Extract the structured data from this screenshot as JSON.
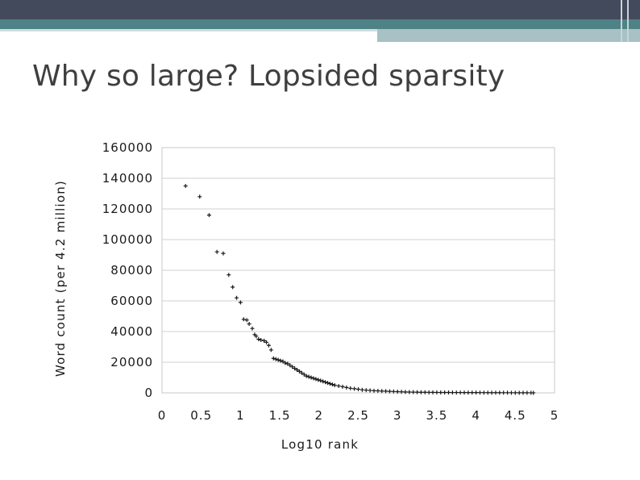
{
  "slide": {
    "title": "Why so large? Lopsided sparsity"
  },
  "colors": {
    "top_bar": "#434a5b",
    "teal_bar": "#4e8286",
    "light_bar": "#a7c1c4",
    "grid": "#d0d0d0",
    "marker": "#1a1a1a"
  },
  "chart_data": {
    "type": "scatter",
    "xlabel": "Log10 rank",
    "ylabel": "Word count (per 4.2 million)",
    "xlim": [
      0,
      5
    ],
    "ylim": [
      0,
      160000
    ],
    "x_ticks": [
      "0",
      "0.5",
      "1",
      "1.5",
      "2",
      "2.5",
      "3",
      "3.5",
      "4",
      "4.5",
      "5"
    ],
    "y_ticks": [
      "0",
      "20000",
      "40000",
      "60000",
      "80000",
      "100000",
      "120000",
      "140000",
      "160000"
    ],
    "grid": "horizontal",
    "legend": "none",
    "marker": "plus",
    "points": [
      [
        0.3,
        135000
      ],
      [
        0.48,
        128000
      ],
      [
        0.6,
        116000
      ],
      [
        0.7,
        92000
      ],
      [
        0.78,
        91000
      ],
      [
        0.85,
        77000
      ],
      [
        0.9,
        69000
      ],
      [
        0.95,
        62000
      ],
      [
        1.0,
        59000
      ],
      [
        1.04,
        48000
      ],
      [
        1.08,
        47500
      ],
      [
        1.11,
        45000
      ],
      [
        1.15,
        42000
      ],
      [
        1.18,
        38000
      ],
      [
        1.2,
        37000
      ],
      [
        1.23,
        35000
      ],
      [
        1.26,
        34500
      ],
      [
        1.3,
        34000
      ],
      [
        1.33,
        33000
      ],
      [
        1.36,
        31000
      ],
      [
        1.39,
        28000
      ],
      [
        1.42,
        22500
      ],
      [
        1.45,
        22000
      ],
      [
        1.48,
        21500
      ],
      [
        1.51,
        21000
      ],
      [
        1.54,
        20500
      ],
      [
        1.57,
        19500
      ],
      [
        1.6,
        19000
      ],
      [
        1.63,
        18000
      ],
      [
        1.66,
        17000
      ],
      [
        1.69,
        16000
      ],
      [
        1.72,
        15000
      ],
      [
        1.75,
        14000
      ],
      [
        1.78,
        13000
      ],
      [
        1.81,
        12000
      ],
      [
        1.84,
        11000
      ],
      [
        1.87,
        10500
      ],
      [
        1.9,
        10000
      ],
      [
        1.93,
        9500
      ],
      [
        1.96,
        9000
      ],
      [
        1.99,
        8500
      ],
      [
        2.02,
        8000
      ],
      [
        2.05,
        7500
      ],
      [
        2.08,
        7000
      ],
      [
        2.11,
        6500
      ],
      [
        2.14,
        6000
      ],
      [
        2.17,
        5500
      ],
      [
        2.2,
        5000
      ],
      [
        2.25,
        4500
      ],
      [
        2.3,
        4000
      ],
      [
        2.35,
        3500
      ],
      [
        2.4,
        3000
      ],
      [
        2.45,
        2700
      ],
      [
        2.5,
        2400
      ],
      [
        2.55,
        2000
      ],
      [
        2.6,
        1800
      ],
      [
        2.65,
        1600
      ],
      [
        2.7,
        1400
      ],
      [
        2.75,
        1300
      ],
      [
        2.8,
        1200
      ],
      [
        2.85,
        1100
      ],
      [
        2.9,
        1000
      ],
      [
        2.95,
        900
      ],
      [
        3.0,
        800
      ],
      [
        3.05,
        700
      ],
      [
        3.1,
        600
      ],
      [
        3.15,
        550
      ],
      [
        3.2,
        500
      ],
      [
        3.25,
        450
      ],
      [
        3.3,
        400
      ],
      [
        3.35,
        380
      ],
      [
        3.4,
        350
      ],
      [
        3.45,
        320
      ],
      [
        3.5,
        300
      ],
      [
        3.55,
        280
      ],
      [
        3.6,
        260
      ],
      [
        3.65,
        250
      ],
      [
        3.7,
        240
      ],
      [
        3.75,
        230
      ],
      [
        3.8,
        220
      ],
      [
        3.85,
        210
      ],
      [
        3.9,
        200
      ],
      [
        3.95,
        190
      ],
      [
        4.0,
        180
      ],
      [
        4.05,
        170
      ],
      [
        4.1,
        160
      ],
      [
        4.15,
        150
      ],
      [
        4.2,
        140
      ],
      [
        4.25,
        130
      ],
      [
        4.3,
        120
      ],
      [
        4.35,
        110
      ],
      [
        4.4,
        100
      ],
      [
        4.45,
        90
      ],
      [
        4.5,
        80
      ],
      [
        4.55,
        70
      ],
      [
        4.6,
        60
      ],
      [
        4.65,
        50
      ],
      [
        4.7,
        40
      ],
      [
        4.73,
        30
      ]
    ]
  }
}
